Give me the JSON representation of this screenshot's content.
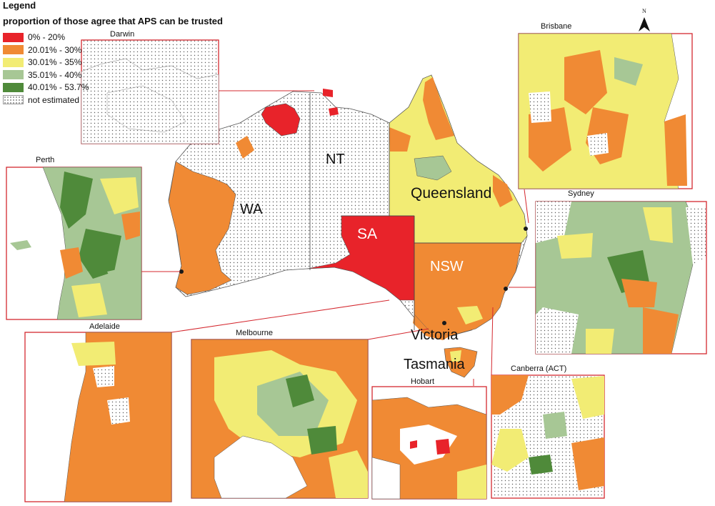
{
  "legend": {
    "title": "Legend",
    "subtitle": "proportion of those agree that APS can be trusted",
    "items": [
      {
        "label": "0% - 20%",
        "color": "#e8232a"
      },
      {
        "label": "20.01% - 30%",
        "color": "#f08a34"
      },
      {
        "label": "30.01% - 35%",
        "color": "#f2ec74"
      },
      {
        "label": "35.01% - 40%",
        "color": "#a7c795"
      },
      {
        "label": "40.01% - 53.7%",
        "color": "#4f8a3a"
      },
      {
        "label": "not estimated",
        "color": "#ffffff",
        "pattern": "dots"
      }
    ]
  },
  "north_arrow": "N",
  "states": {
    "wa": "WA",
    "nt": "NT",
    "sa": "SA",
    "qld": "Queensland",
    "nsw": "NSW",
    "vic": "Victoria",
    "tas": "Tasmania"
  },
  "insets": {
    "darwin": "Darwin",
    "perth": "Perth",
    "brisbane": "Brisbane",
    "sydney": "Sydney",
    "adelaide": "Adelaide",
    "melbourne": "Melbourne",
    "hobart": "Hobart",
    "canberra": "Canberra (ACT)"
  },
  "colors": {
    "inset_border": "#d4282f",
    "leader_line": "#d4282f",
    "boundary": "#3a3a3a"
  }
}
